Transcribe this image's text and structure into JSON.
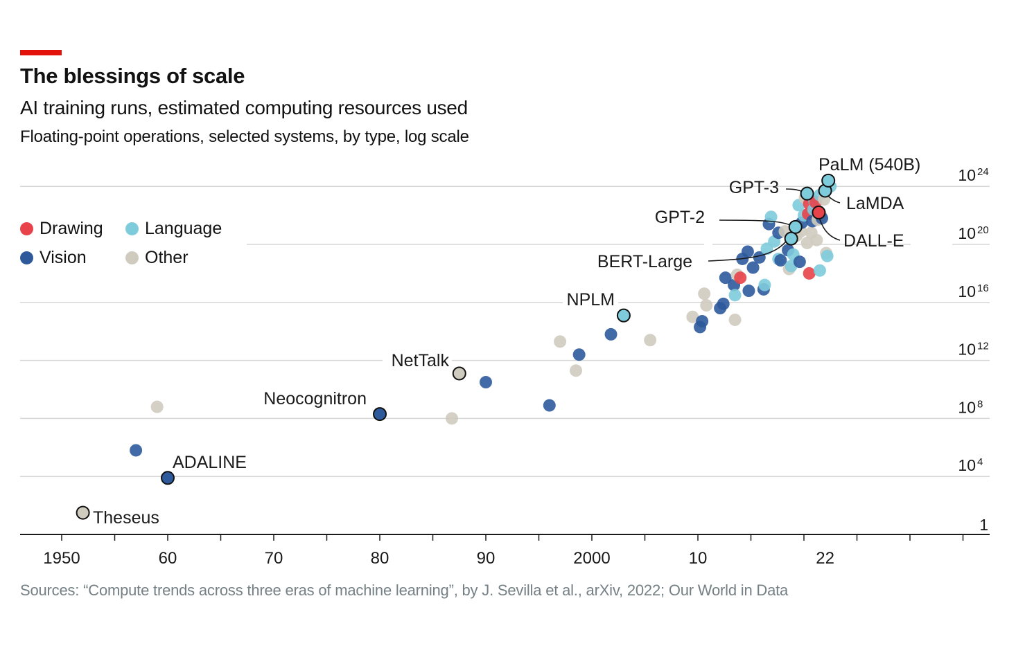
{
  "header": {
    "title": "The blessings of scale",
    "subtitle": "AI training runs, estimated computing resources used",
    "description": "Floating-point operations, selected systems, by type, log scale"
  },
  "source": "Sources: “Compute trends across three eras of machine learning”, by J. Sevilla et al., arXiv, 2022; Our World in Data",
  "legend": [
    {
      "label": "Drawing",
      "color": "#e8424a"
    },
    {
      "label": "Language",
      "color": "#7ecbdb"
    },
    {
      "label": "Vision",
      "color": "#2e5a9c"
    },
    {
      "label": "Other",
      "color": "#cfcbbf"
    }
  ],
  "chart_data": {
    "type": "scatter",
    "title": "AI training runs, estimated computing resources used",
    "xlabel": "",
    "ylabel": "Floating-point operations (log scale)",
    "x_range": [
      1946,
      2038
    ],
    "y_log10_range": [
      0,
      24
    ],
    "x_ticks": [
      {
        "value": 1950,
        "label": "1950"
      },
      {
        "value": 1960,
        "label": "60"
      },
      {
        "value": 1970,
        "label": "70"
      },
      {
        "value": 1980,
        "label": "80"
      },
      {
        "value": 1990,
        "label": "90"
      },
      {
        "value": 2000,
        "label": "2000"
      },
      {
        "value": 2010,
        "label": "10"
      },
      {
        "value": 2022,
        "label": "22"
      }
    ],
    "y_ticks": [
      {
        "log10": 0,
        "base": "1",
        "exp": ""
      },
      {
        "log10": 4,
        "base": "10",
        "exp": "4"
      },
      {
        "log10": 8,
        "base": "10",
        "exp": "8"
      },
      {
        "log10": 12,
        "base": "10",
        "exp": "12"
      },
      {
        "log10": 16,
        "base": "10",
        "exp": "16"
      },
      {
        "log10": 20,
        "base": "10",
        "exp": "20"
      },
      {
        "log10": 24,
        "base": "10",
        "exp": "24"
      }
    ],
    "colors": {
      "Drawing": "#e8424a",
      "Language": "#7ecbdb",
      "Vision": "#2e5a9c",
      "Other": "#cfcbbf"
    },
    "labeled_points": [
      {
        "name": "Theseus",
        "year": 1952,
        "log10_flop": 1.5,
        "category": "Other"
      },
      {
        "name": "ADALINE",
        "year": 1960,
        "log10_flop": 3.9,
        "category": "Vision"
      },
      {
        "name": "Neocognitron",
        "year": 1980,
        "log10_flop": 8.3,
        "category": "Vision"
      },
      {
        "name": "NetTalk",
        "year": 1987.5,
        "log10_flop": 11.1,
        "category": "Other"
      },
      {
        "name": "NPLM",
        "year": 2003,
        "log10_flop": 15.1,
        "category": "Language"
      },
      {
        "name": "BERT-Large",
        "year": 2018.8,
        "log10_flop": 20.4,
        "category": "Language"
      },
      {
        "name": "GPT-2",
        "year": 2019.2,
        "log10_flop": 21.2,
        "category": "Language"
      },
      {
        "name": "GPT-3",
        "year": 2020.3,
        "log10_flop": 23.5,
        "category": "Language"
      },
      {
        "name": "DALL-E",
        "year": 2021.4,
        "log10_flop": 22.2,
        "category": "Drawing"
      },
      {
        "name": "LaMDA",
        "year": 2022.0,
        "log10_flop": 23.7,
        "category": "Language"
      },
      {
        "name": "PaLM (540B)",
        "year": 2022.3,
        "log10_flop": 24.4,
        "category": "Language"
      }
    ],
    "points": [
      {
        "year": 1959,
        "log10_flop": 8.8,
        "category": "Other"
      },
      {
        "year": 1957,
        "log10_flop": 5.8,
        "category": "Vision"
      },
      {
        "year": 1986.8,
        "log10_flop": 8.0,
        "category": "Other"
      },
      {
        "year": 1990,
        "log10_flop": 10.5,
        "category": "Vision"
      },
      {
        "year": 1996,
        "log10_flop": 8.9,
        "category": "Vision"
      },
      {
        "year": 1997,
        "log10_flop": 13.3,
        "category": "Other"
      },
      {
        "year": 1998.5,
        "log10_flop": 11.3,
        "category": "Other"
      },
      {
        "year": 1998.8,
        "log10_flop": 12.4,
        "category": "Vision"
      },
      {
        "year": 2001.8,
        "log10_flop": 13.8,
        "category": "Vision"
      },
      {
        "year": 2005.5,
        "log10_flop": 13.4,
        "category": "Other"
      },
      {
        "year": 2009.5,
        "log10_flop": 15.0,
        "category": "Other"
      },
      {
        "year": 2010.2,
        "log10_flop": 14.3,
        "category": "Vision"
      },
      {
        "year": 2010.4,
        "log10_flop": 14.7,
        "category": "Vision"
      },
      {
        "year": 2010.6,
        "log10_flop": 16.6,
        "category": "Other"
      },
      {
        "year": 2010.8,
        "log10_flop": 15.8,
        "category": "Other"
      },
      {
        "year": 2012.1,
        "log10_flop": 15.6,
        "category": "Vision"
      },
      {
        "year": 2012.4,
        "log10_flop": 15.9,
        "category": "Vision"
      },
      {
        "year": 2012.6,
        "log10_flop": 17.7,
        "category": "Vision"
      },
      {
        "year": 2013.4,
        "log10_flop": 17.2,
        "category": "Vision"
      },
      {
        "year": 2013.5,
        "log10_flop": 16.5,
        "category": "Language"
      },
      {
        "year": 2013.7,
        "log10_flop": 17.9,
        "category": "Other"
      },
      {
        "year": 2014.0,
        "log10_flop": 17.7,
        "category": "Drawing"
      },
      {
        "year": 2013.5,
        "log10_flop": 14.8,
        "category": "Other"
      },
      {
        "year": 2014.2,
        "log10_flop": 19.0,
        "category": "Vision"
      },
      {
        "year": 2014.7,
        "log10_flop": 19.5,
        "category": "Vision"
      },
      {
        "year": 2014.8,
        "log10_flop": 16.8,
        "category": "Vision"
      },
      {
        "year": 2015.2,
        "log10_flop": 18.4,
        "category": "Vision"
      },
      {
        "year": 2015.8,
        "log10_flop": 19.1,
        "category": "Vision"
      },
      {
        "year": 2016.2,
        "log10_flop": 16.9,
        "category": "Vision"
      },
      {
        "year": 2016.3,
        "log10_flop": 17.2,
        "category": "Language"
      },
      {
        "year": 2016.5,
        "log10_flop": 19.7,
        "category": "Language"
      },
      {
        "year": 2016.7,
        "log10_flop": 21.4,
        "category": "Vision"
      },
      {
        "year": 2016.9,
        "log10_flop": 21.9,
        "category": "Language"
      },
      {
        "year": 2017.2,
        "log10_flop": 20.2,
        "category": "Language"
      },
      {
        "year": 2017.6,
        "log10_flop": 19.0,
        "category": "Language"
      },
      {
        "year": 2017.6,
        "log10_flop": 20.8,
        "category": "Vision"
      },
      {
        "year": 2017.8,
        "log10_flop": 18.9,
        "category": "Vision"
      },
      {
        "year": 2018.2,
        "log10_flop": 20.9,
        "category": "Other"
      },
      {
        "year": 2018.5,
        "log10_flop": 19.6,
        "category": "Vision"
      },
      {
        "year": 2018.6,
        "log10_flop": 18.3,
        "category": "Other"
      },
      {
        "year": 2018.8,
        "log10_flop": 18.5,
        "category": "Language"
      },
      {
        "year": 2019.0,
        "log10_flop": 19.3,
        "category": "Language"
      },
      {
        "year": 2019.3,
        "log10_flop": 20.6,
        "category": "Other"
      },
      {
        "year": 2019.5,
        "log10_flop": 22.7,
        "category": "Language"
      },
      {
        "year": 2019.6,
        "log10_flop": 18.8,
        "category": "Vision"
      },
      {
        "year": 2019.7,
        "log10_flop": 20.9,
        "category": "Other"
      },
      {
        "year": 2019.8,
        "log10_flop": 21.5,
        "category": "Vision"
      },
      {
        "year": 2020.0,
        "log10_flop": 22.0,
        "category": "Language"
      },
      {
        "year": 2020.1,
        "log10_flop": 23.2,
        "category": "Other"
      },
      {
        "year": 2020.3,
        "log10_flop": 20.1,
        "category": "Other"
      },
      {
        "year": 2020.4,
        "log10_flop": 22.1,
        "category": "Drawing"
      },
      {
        "year": 2020.5,
        "log10_flop": 22.8,
        "category": "Drawing"
      },
      {
        "year": 2020.5,
        "log10_flop": 18.0,
        "category": "Drawing"
      },
      {
        "year": 2020.7,
        "log10_flop": 20.8,
        "category": "Other"
      },
      {
        "year": 2020.8,
        "log10_flop": 21.6,
        "category": "Vision"
      },
      {
        "year": 2020.9,
        "log10_flop": 22.4,
        "category": "Language"
      },
      {
        "year": 2021.0,
        "log10_flop": 23.0,
        "category": "Language"
      },
      {
        "year": 2021.1,
        "log10_flop": 22.9,
        "category": "Drawing"
      },
      {
        "year": 2021.2,
        "log10_flop": 20.3,
        "category": "Other"
      },
      {
        "year": 2021.3,
        "log10_flop": 21.7,
        "category": "Other"
      },
      {
        "year": 2021.5,
        "log10_flop": 23.4,
        "category": "Language"
      },
      {
        "year": 2021.6,
        "log10_flop": 22.0,
        "category": "Other"
      },
      {
        "year": 2021.7,
        "log10_flop": 21.8,
        "category": "Vision"
      },
      {
        "year": 2021.9,
        "log10_flop": 23.1,
        "category": "Other"
      },
      {
        "year": 2022.1,
        "log10_flop": 19.4,
        "category": "Other"
      },
      {
        "year": 2021.5,
        "log10_flop": 18.2,
        "category": "Language"
      },
      {
        "year": 2022.2,
        "log10_flop": 19.2,
        "category": "Language"
      },
      {
        "year": 2022.5,
        "log10_flop": 24.0,
        "category": "Language"
      }
    ]
  }
}
